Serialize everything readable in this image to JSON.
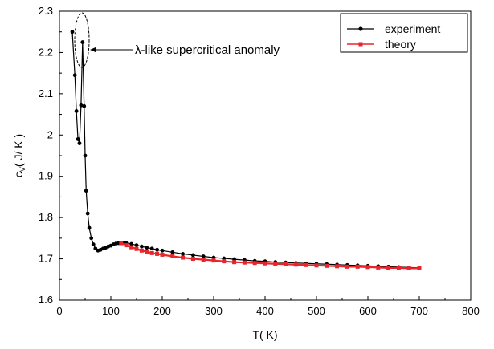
{
  "chart_data": {
    "type": "line",
    "xlabel": "T( K)",
    "ylabel_main": "c",
    "ylabel_sub": "V",
    "ylabel_rest": "( J/ K )",
    "xlim": [
      0,
      800
    ],
    "ylim": [
      1.6,
      2.3
    ],
    "x_ticks": [
      "0",
      "100",
      "200",
      "300",
      "400",
      "500",
      "600",
      "700",
      "800"
    ],
    "y_ticks": [
      "1.6",
      "1.7",
      "1.8",
      "1.9",
      "2",
      "2.1",
      "2.2",
      "2.3"
    ],
    "grid": false,
    "legend_position": "top-right",
    "annotation": "λ-like supercritical anomaly",
    "series": [
      {
        "name": "experiment",
        "color": "#000000",
        "marker": "circle",
        "x": [
          25,
          30,
          33,
          36,
          39,
          42,
          45,
          48,
          50,
          52,
          55,
          58,
          62,
          66,
          70,
          75,
          80,
          85,
          90,
          95,
          100,
          105,
          110,
          115,
          120,
          125,
          130,
          140,
          150,
          160,
          170,
          180,
          190,
          200,
          220,
          240,
          260,
          280,
          300,
          320,
          340,
          360,
          380,
          400,
          420,
          440,
          460,
          480,
          500,
          520,
          540,
          560,
          580,
          600,
          620,
          640,
          660,
          680,
          700
        ],
        "y": [
          2.25,
          2.145,
          2.058,
          1.99,
          1.98,
          2.072,
          2.225,
          2.07,
          1.95,
          1.865,
          1.81,
          1.775,
          1.75,
          1.735,
          1.725,
          1.72,
          1.722,
          1.725,
          1.727,
          1.73,
          1.732,
          1.735,
          1.737,
          1.738,
          1.739,
          1.739,
          1.738,
          1.736,
          1.733,
          1.73,
          1.727,
          1.725,
          1.722,
          1.72,
          1.716,
          1.712,
          1.709,
          1.706,
          1.703,
          1.701,
          1.699,
          1.697,
          1.695,
          1.694,
          1.692,
          1.691,
          1.69,
          1.689,
          1.688,
          1.687,
          1.686,
          1.685,
          1.684,
          1.683,
          1.682,
          1.681,
          1.68,
          1.679,
          1.678
        ]
      },
      {
        "name": "theory",
        "color": "#e8252b",
        "marker": "square",
        "x": [
          120,
          130,
          140,
          150,
          160,
          170,
          180,
          190,
          200,
          220,
          240,
          260,
          280,
          300,
          320,
          340,
          360,
          380,
          400,
          420,
          440,
          460,
          480,
          500,
          520,
          540,
          560,
          580,
          600,
          620,
          640,
          660,
          680,
          700
        ],
        "y": [
          1.738,
          1.733,
          1.728,
          1.724,
          1.72,
          1.717,
          1.714,
          1.712,
          1.71,
          1.706,
          1.703,
          1.7,
          1.698,
          1.696,
          1.694,
          1.692,
          1.691,
          1.69,
          1.689,
          1.688,
          1.687,
          1.686,
          1.685,
          1.684,
          1.683,
          1.682,
          1.681,
          1.681,
          1.68,
          1.679,
          1.678,
          1.678,
          1.677,
          1.677
        ]
      }
    ]
  }
}
